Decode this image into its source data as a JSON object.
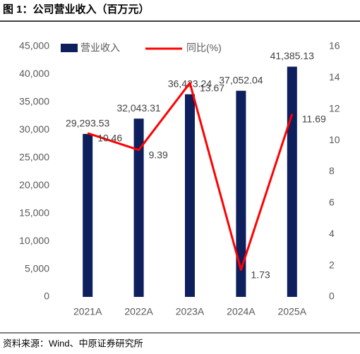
{
  "title": "图 1：公司营业收入（百万元）",
  "source": "资料来源：Wind、中原证券研究所",
  "chart_data": {
    "type": "bar",
    "categories": [
      "2021A",
      "2022A",
      "2023A",
      "2024A",
      "2025A"
    ],
    "series": [
      {
        "name": "营业收入",
        "type": "bar",
        "color": "#0d1f5c",
        "axis": "y",
        "values": [
          29293.53,
          32043.31,
          36423.24,
          37052.04,
          41385.13
        ],
        "value_labels": [
          "29,293.53",
          "32,043.31",
          "36,423.24",
          "37,052.04",
          "41,385.13"
        ]
      },
      {
        "name": "同比(%)",
        "type": "line",
        "color": "#ff0000",
        "axis": "y2",
        "values": [
          10.46,
          9.39,
          13.67,
          1.73,
          11.69
        ]
      }
    ],
    "ylim": [
      0,
      45000
    ],
    "yticks": [
      0,
      {
        "value": 5000,
        "label": "5,000"
      },
      {
        "value": 10000,
        "label": "10,000"
      },
      {
        "value": 15000,
        "label": "15,000"
      },
      {
        "value": 20000,
        "label": "20,000"
      },
      {
        "value": 25000,
        "label": "25,000"
      },
      {
        "value": 30000,
        "label": "30,000"
      },
      {
        "value": 35000,
        "label": "35,000"
      },
      {
        "value": 40000,
        "label": "40,000"
      },
      {
        "value": 45000,
        "label": "45,000"
      }
    ],
    "y2lim": [
      0,
      16
    ],
    "y2ticks": [
      0,
      2,
      4,
      6,
      8,
      10,
      12,
      14,
      16
    ],
    "grid": false,
    "legend": "top"
  }
}
